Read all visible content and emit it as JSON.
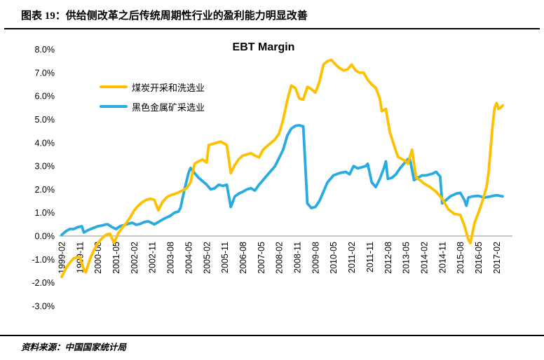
{
  "header": {
    "tag": "图表 19：",
    "title": "供给侧改革之后传统周期性行业的盈利能力明显改善"
  },
  "source": {
    "label": "资料来源：",
    "text": "中国国家统计局"
  },
  "chart_data": {
    "type": "line",
    "title": "EBT Margin",
    "xlabel": "",
    "ylabel": "",
    "ylim": [
      -3.0,
      8.0
    ],
    "y_tick_step": 1.0,
    "y_ticks": [
      "8.0%",
      "7.0%",
      "6.0%",
      "5.0%",
      "4.0%",
      "3.0%",
      "2.0%",
      "1.0%",
      "0.0%",
      "-1.0%",
      "-2.0%",
      "-3.0%"
    ],
    "x_ticks": [
      "1999-02",
      "1999-11",
      "2000-08",
      "2001-05",
      "2002-02",
      "2002-11",
      "2003-08",
      "2004-05",
      "2005-02",
      "2005-11",
      "2006-08",
      "2007-05",
      "2008-02",
      "2008-11",
      "2009-08",
      "2010-05",
      "2011-02",
      "2011-11",
      "2012-08",
      "2013-05",
      "2014-02",
      "2014-11",
      "2015-08",
      "2016-05",
      "2017-02"
    ],
    "x_range": [
      "1999-02",
      "2017-05"
    ],
    "grid": "zero-line-only",
    "axis_color": "#A6A6A6",
    "legend_position": "upper-left",
    "series": [
      {
        "name": "煤炭开采和洗选业",
        "color": "#FFC000",
        "points": [
          [
            "1999-02",
            -1.75
          ],
          [
            "1999-04",
            -1.4
          ],
          [
            "1999-06",
            -1.15
          ],
          [
            "1999-08",
            -0.95
          ],
          [
            "1999-11",
            -0.9
          ],
          [
            "2000-01",
            -1.45
          ],
          [
            "2000-02",
            -1.55
          ],
          [
            "2000-04",
            -1.0
          ],
          [
            "2000-06",
            -0.6
          ],
          [
            "2000-08",
            -0.3
          ],
          [
            "2000-10",
            -0.1
          ],
          [
            "2000-12",
            0.05
          ],
          [
            "2001-02",
            0.1
          ],
          [
            "2001-04",
            -0.3
          ],
          [
            "2001-06",
            0.1
          ],
          [
            "2001-08",
            0.35
          ],
          [
            "2001-10",
            0.55
          ],
          [
            "2001-12",
            0.8
          ],
          [
            "2002-02",
            1.1
          ],
          [
            "2002-04",
            1.3
          ],
          [
            "2002-06",
            1.45
          ],
          [
            "2002-08",
            1.55
          ],
          [
            "2002-10",
            1.6
          ],
          [
            "2002-12",
            1.55
          ],
          [
            "2003-02",
            1.1
          ],
          [
            "2003-04",
            1.45
          ],
          [
            "2003-06",
            1.65
          ],
          [
            "2003-08",
            1.75
          ],
          [
            "2003-10",
            1.8
          ],
          [
            "2003-12",
            1.87
          ],
          [
            "2004-02",
            1.95
          ],
          [
            "2004-04",
            2.05
          ],
          [
            "2004-06",
            2.3
          ],
          [
            "2004-08",
            3.1
          ],
          [
            "2004-10",
            3.2
          ],
          [
            "2004-12",
            3.28
          ],
          [
            "2005-02",
            3.15
          ],
          [
            "2005-03",
            3.9
          ],
          [
            "2005-05",
            3.95
          ],
          [
            "2005-07",
            4.0
          ],
          [
            "2005-09",
            4.05
          ],
          [
            "2005-11",
            3.95
          ],
          [
            "2005-12",
            3.9
          ],
          [
            "2006-02",
            2.7
          ],
          [
            "2006-04",
            3.05
          ],
          [
            "2006-06",
            3.3
          ],
          [
            "2006-08",
            3.45
          ],
          [
            "2006-10",
            3.5
          ],
          [
            "2006-12",
            3.55
          ],
          [
            "2007-02",
            3.45
          ],
          [
            "2007-04",
            3.37
          ],
          [
            "2007-06",
            3.7
          ],
          [
            "2007-08",
            3.85
          ],
          [
            "2007-10",
            4.0
          ],
          [
            "2007-12",
            4.15
          ],
          [
            "2008-02",
            4.4
          ],
          [
            "2008-04",
            5.0
          ],
          [
            "2008-06",
            5.8
          ],
          [
            "2008-08",
            6.45
          ],
          [
            "2008-10",
            6.35
          ],
          [
            "2008-12",
            5.9
          ],
          [
            "2009-02",
            5.85
          ],
          [
            "2009-04",
            6.4
          ],
          [
            "2009-06",
            6.3
          ],
          [
            "2009-08",
            6.15
          ],
          [
            "2009-10",
            6.6
          ],
          [
            "2009-12",
            7.35
          ],
          [
            "2010-02",
            7.5
          ],
          [
            "2010-04",
            7.55
          ],
          [
            "2010-06",
            7.35
          ],
          [
            "2010-08",
            7.2
          ],
          [
            "2010-10",
            7.1
          ],
          [
            "2010-12",
            7.15
          ],
          [
            "2011-02",
            7.35
          ],
          [
            "2011-04",
            7.1
          ],
          [
            "2011-06",
            7.0
          ],
          [
            "2011-08",
            7.0
          ],
          [
            "2011-10",
            6.7
          ],
          [
            "2011-12",
            6.5
          ],
          [
            "2012-02",
            6.35
          ],
          [
            "2012-04",
            5.9
          ],
          [
            "2012-05",
            5.35
          ],
          [
            "2012-07",
            5.45
          ],
          [
            "2012-09",
            4.45
          ],
          [
            "2012-11",
            3.9
          ],
          [
            "2013-01",
            3.4
          ],
          [
            "2013-03",
            3.3
          ],
          [
            "2013-05",
            3.2
          ],
          [
            "2013-06",
            3.1
          ],
          [
            "2013-08",
            3.7
          ],
          [
            "2013-10",
            2.5
          ],
          [
            "2013-12",
            2.4
          ],
          [
            "2014-02",
            2.25
          ],
          [
            "2014-05",
            2.1
          ],
          [
            "2014-08",
            1.9
          ],
          [
            "2014-11",
            1.6
          ],
          [
            "2015-02",
            1.15
          ],
          [
            "2015-05",
            0.95
          ],
          [
            "2015-08",
            0.9
          ],
          [
            "2015-10",
            0.45
          ],
          [
            "2015-12",
            -0.15
          ],
          [
            "2016-01",
            -0.3
          ],
          [
            "2016-03",
            0.55
          ],
          [
            "2016-05",
            1.0
          ],
          [
            "2016-07",
            1.5
          ],
          [
            "2016-09",
            2.1
          ],
          [
            "2016-10",
            2.7
          ],
          [
            "2016-11",
            3.7
          ],
          [
            "2016-12",
            4.7
          ],
          [
            "2017-01",
            5.5
          ],
          [
            "2017-02",
            5.7
          ],
          [
            "2017-03",
            5.45
          ],
          [
            "2017-04",
            5.5
          ],
          [
            "2017-05",
            5.6
          ]
        ]
      },
      {
        "name": "黑色金属矿采选业",
        "color": "#29ABE2",
        "points": [
          [
            "1999-02",
            0.05
          ],
          [
            "1999-04",
            0.2
          ],
          [
            "1999-06",
            0.3
          ],
          [
            "1999-08",
            0.3
          ],
          [
            "1999-10",
            0.38
          ],
          [
            "1999-12",
            0.42
          ],
          [
            "2000-01",
            0.15
          ],
          [
            "2000-03",
            0.25
          ],
          [
            "2000-05",
            0.32
          ],
          [
            "2000-08",
            0.42
          ],
          [
            "2000-10",
            0.45
          ],
          [
            "2000-12",
            0.5
          ],
          [
            "2001-01",
            0.5
          ],
          [
            "2001-03",
            0.38
          ],
          [
            "2001-05",
            0.3
          ],
          [
            "2001-07",
            0.42
          ],
          [
            "2001-09",
            0.47
          ],
          [
            "2001-11",
            0.52
          ],
          [
            "2002-01",
            0.57
          ],
          [
            "2002-03",
            0.48
          ],
          [
            "2002-05",
            0.52
          ],
          [
            "2002-07",
            0.6
          ],
          [
            "2002-09",
            0.63
          ],
          [
            "2002-11",
            0.55
          ],
          [
            "2002-12",
            0.5
          ],
          [
            "2003-02",
            0.6
          ],
          [
            "2003-05",
            0.75
          ],
          [
            "2003-08",
            0.87
          ],
          [
            "2003-10",
            1.0
          ],
          [
            "2003-12",
            1.05
          ],
          [
            "2004-01",
            1.2
          ],
          [
            "2004-03",
            2.0
          ],
          [
            "2004-05",
            2.7
          ],
          [
            "2004-06",
            2.92
          ],
          [
            "2004-08",
            2.7
          ],
          [
            "2004-10",
            2.5
          ],
          [
            "2004-12",
            2.35
          ],
          [
            "2005-02",
            2.2
          ],
          [
            "2005-04",
            2.0
          ],
          [
            "2005-06",
            2.05
          ],
          [
            "2005-08",
            2.2
          ],
          [
            "2005-10",
            2.15
          ],
          [
            "2005-12",
            2.2
          ],
          [
            "2006-02",
            1.25
          ],
          [
            "2006-04",
            1.7
          ],
          [
            "2006-06",
            1.82
          ],
          [
            "2006-08",
            1.9
          ],
          [
            "2006-10",
            2.0
          ],
          [
            "2006-12",
            2.05
          ],
          [
            "2007-02",
            1.95
          ],
          [
            "2007-04",
            2.2
          ],
          [
            "2007-06",
            2.4
          ],
          [
            "2007-08",
            2.6
          ],
          [
            "2007-10",
            2.8
          ],
          [
            "2007-12",
            3.0
          ],
          [
            "2008-02",
            3.35
          ],
          [
            "2008-04",
            3.7
          ],
          [
            "2008-06",
            4.3
          ],
          [
            "2008-08",
            4.6
          ],
          [
            "2008-10",
            4.72
          ],
          [
            "2008-12",
            4.75
          ],
          [
            "2009-02",
            4.7
          ],
          [
            "2009-04",
            1.4
          ],
          [
            "2009-06",
            1.2
          ],
          [
            "2009-08",
            1.25
          ],
          [
            "2009-10",
            1.5
          ],
          [
            "2009-12",
            1.9
          ],
          [
            "2010-02",
            2.3
          ],
          [
            "2010-05",
            2.6
          ],
          [
            "2010-08",
            2.7
          ],
          [
            "2010-11",
            2.75
          ],
          [
            "2011-01",
            2.65
          ],
          [
            "2011-03",
            3.0
          ],
          [
            "2011-05",
            2.9
          ],
          [
            "2011-07",
            2.95
          ],
          [
            "2011-09",
            3.0
          ],
          [
            "2011-10",
            3.1
          ],
          [
            "2011-12",
            2.3
          ],
          [
            "2012-02",
            2.1
          ],
          [
            "2012-04",
            2.45
          ],
          [
            "2012-06",
            2.9
          ],
          [
            "2012-07",
            3.2
          ],
          [
            "2012-08",
            2.45
          ],
          [
            "2012-10",
            2.5
          ],
          [
            "2012-12",
            2.65
          ],
          [
            "2013-02",
            2.9
          ],
          [
            "2013-04",
            3.1
          ],
          [
            "2013-06",
            3.3
          ],
          [
            "2013-07",
            3.28
          ],
          [
            "2013-09",
            2.4
          ],
          [
            "2013-11",
            2.5
          ],
          [
            "2014-01",
            2.6
          ],
          [
            "2014-03",
            2.6
          ],
          [
            "2014-06",
            2.67
          ],
          [
            "2014-08",
            2.75
          ],
          [
            "2014-10",
            2.55
          ],
          [
            "2014-11",
            1.4
          ],
          [
            "2015-01",
            1.55
          ],
          [
            "2015-03",
            1.7
          ],
          [
            "2015-06",
            1.82
          ],
          [
            "2015-08",
            1.85
          ],
          [
            "2015-10",
            1.55
          ],
          [
            "2015-11",
            1.3
          ],
          [
            "2015-12",
            1.65
          ],
          [
            "2016-02",
            1.7
          ],
          [
            "2016-05",
            1.72
          ],
          [
            "2016-08",
            1.65
          ],
          [
            "2016-11",
            1.7
          ],
          [
            "2017-02",
            1.75
          ],
          [
            "2017-05",
            1.7
          ]
        ]
      }
    ]
  }
}
